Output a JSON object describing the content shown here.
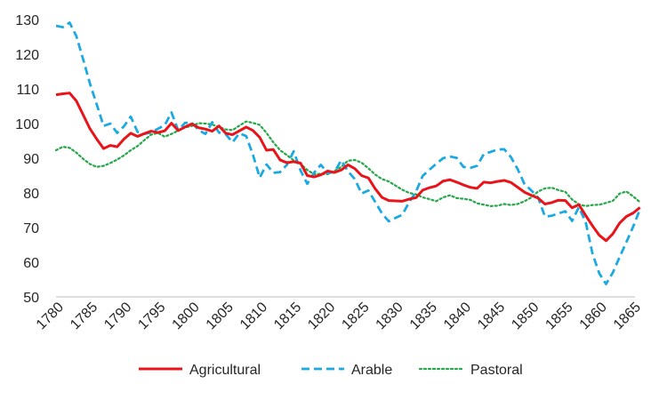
{
  "chart_data": {
    "type": "line",
    "xlim": [
      1780,
      1865
    ],
    "ylim": [
      50,
      130
    ],
    "y_ticks": [
      50,
      60,
      70,
      80,
      90,
      100,
      110,
      120,
      130
    ],
    "x_ticks": [
      1780,
      1785,
      1790,
      1795,
      1800,
      1805,
      1810,
      1815,
      1820,
      1825,
      1830,
      1835,
      1840,
      1845,
      1850,
      1855,
      1860,
      1865
    ],
    "grid": false,
    "legend_position": "bottom",
    "series": [
      {
        "name": "Agricultural",
        "color": "#e8141a",
        "dash": "solid",
        "points": [
          [
            1780,
            108.3
          ],
          [
            1781,
            108.6
          ],
          [
            1782,
            108.8
          ],
          [
            1783,
            106.5
          ],
          [
            1784,
            102.5
          ],
          [
            1785,
            98.5
          ],
          [
            1786,
            95.5
          ],
          [
            1787,
            92.8
          ],
          [
            1788,
            93.7
          ],
          [
            1789,
            93.3
          ],
          [
            1790,
            95.5
          ],
          [
            1791,
            97.2
          ],
          [
            1792,
            96.3
          ],
          [
            1793,
            97.1
          ],
          [
            1794,
            97.8
          ],
          [
            1795,
            97.4
          ],
          [
            1796,
            97.9
          ],
          [
            1797,
            100.1
          ],
          [
            1798,
            98.0
          ],
          [
            1799,
            99.0
          ],
          [
            1800,
            99.9
          ],
          [
            1801,
            98.8
          ],
          [
            1802,
            98.4
          ],
          [
            1803,
            97.8
          ],
          [
            1804,
            99.3
          ],
          [
            1805,
            97.2
          ],
          [
            1806,
            96.8
          ],
          [
            1807,
            97.9
          ],
          [
            1808,
            99.0
          ],
          [
            1809,
            98.0
          ],
          [
            1810,
            96.0
          ],
          [
            1811,
            92.3
          ],
          [
            1812,
            92.5
          ],
          [
            1813,
            89.5
          ],
          [
            1814,
            88.7
          ],
          [
            1815,
            89.0
          ],
          [
            1816,
            88.6
          ],
          [
            1817,
            85.0
          ],
          [
            1818,
            84.6
          ],
          [
            1819,
            85.2
          ],
          [
            1820,
            86.3
          ],
          [
            1821,
            85.9
          ],
          [
            1822,
            86.6
          ],
          [
            1823,
            88.1
          ],
          [
            1824,
            87.0
          ],
          [
            1825,
            85.0
          ],
          [
            1826,
            84.3
          ],
          [
            1827,
            81.2
          ],
          [
            1828,
            78.7
          ],
          [
            1829,
            77.8
          ],
          [
            1830,
            77.7
          ],
          [
            1831,
            77.6
          ],
          [
            1832,
            78.2
          ],
          [
            1833,
            78.6
          ],
          [
            1834,
            80.8
          ],
          [
            1835,
            81.5
          ],
          [
            1836,
            82.0
          ],
          [
            1837,
            83.4
          ],
          [
            1838,
            83.8
          ],
          [
            1839,
            83.1
          ],
          [
            1840,
            82.3
          ],
          [
            1841,
            81.6
          ],
          [
            1842,
            81.3
          ],
          [
            1843,
            83.1
          ],
          [
            1844,
            82.9
          ],
          [
            1845,
            83.3
          ],
          [
            1846,
            83.6
          ],
          [
            1847,
            83.0
          ],
          [
            1848,
            81.6
          ],
          [
            1849,
            80.2
          ],
          [
            1850,
            79.3
          ],
          [
            1851,
            78.5
          ],
          [
            1852,
            76.8
          ],
          [
            1853,
            77.2
          ],
          [
            1854,
            77.9
          ],
          [
            1855,
            77.8
          ],
          [
            1856,
            75.7
          ],
          [
            1857,
            76.6
          ],
          [
            1858,
            73.5
          ],
          [
            1859,
            70.5
          ],
          [
            1860,
            67.8
          ],
          [
            1861,
            66.2
          ],
          [
            1862,
            68.2
          ],
          [
            1863,
            71.3
          ],
          [
            1864,
            73.2
          ],
          [
            1865,
            74.2
          ],
          [
            1866,
            75.8
          ]
        ]
      },
      {
        "name": "Arable",
        "color": "#1aa9e0",
        "dash": "dashed",
        "points": [
          [
            1780,
            128.2
          ],
          [
            1781,
            127.8
          ],
          [
            1782,
            129.1
          ],
          [
            1783,
            125.2
          ],
          [
            1784,
            118.5
          ],
          [
            1785,
            111.5
          ],
          [
            1786,
            105.5
          ],
          [
            1787,
            99.3
          ],
          [
            1788,
            100.0
          ],
          [
            1789,
            97.3
          ],
          [
            1790,
            99.2
          ],
          [
            1791,
            102.0
          ],
          [
            1792,
            97.6
          ],
          [
            1793,
            97.0
          ],
          [
            1794,
            97.4
          ],
          [
            1795,
            98.5
          ],
          [
            1796,
            99.5
          ],
          [
            1797,
            103.2
          ],
          [
            1798,
            98.0
          ],
          [
            1799,
            100.2
          ],
          [
            1800,
            100.3
          ],
          [
            1801,
            98.1
          ],
          [
            1802,
            97.0
          ],
          [
            1803,
            100.4
          ],
          [
            1804,
            97.4
          ],
          [
            1805,
            96.9
          ],
          [
            1806,
            94.6
          ],
          [
            1807,
            97.2
          ],
          [
            1808,
            96.4
          ],
          [
            1809,
            91.0
          ],
          [
            1810,
            84.4
          ],
          [
            1811,
            88.2
          ],
          [
            1812,
            85.8
          ],
          [
            1813,
            86.0
          ],
          [
            1814,
            88.1
          ],
          [
            1815,
            92.0
          ],
          [
            1816,
            86.5
          ],
          [
            1817,
            82.6
          ],
          [
            1818,
            85.8
          ],
          [
            1819,
            88.1
          ],
          [
            1820,
            85.7
          ],
          [
            1821,
            86.0
          ],
          [
            1822,
            89.4
          ],
          [
            1823,
            86.2
          ],
          [
            1824,
            84.0
          ],
          [
            1825,
            79.8
          ],
          [
            1826,
            80.7
          ],
          [
            1827,
            77.4
          ],
          [
            1828,
            74.1
          ],
          [
            1829,
            71.8
          ],
          [
            1830,
            72.8
          ],
          [
            1831,
            73.7
          ],
          [
            1832,
            77.3
          ],
          [
            1833,
            80.3
          ],
          [
            1834,
            84.9
          ],
          [
            1835,
            86.7
          ],
          [
            1836,
            88.4
          ],
          [
            1837,
            90.0
          ],
          [
            1838,
            90.5
          ],
          [
            1839,
            90.1
          ],
          [
            1840,
            87.5
          ],
          [
            1841,
            87.2
          ],
          [
            1842,
            87.8
          ],
          [
            1843,
            91.2
          ],
          [
            1844,
            91.8
          ],
          [
            1845,
            92.5
          ],
          [
            1846,
            92.6
          ],
          [
            1847,
            90.3
          ],
          [
            1848,
            86.8
          ],
          [
            1849,
            82.5
          ],
          [
            1850,
            80.7
          ],
          [
            1851,
            78.6
          ],
          [
            1852,
            73.2
          ],
          [
            1853,
            73.4
          ],
          [
            1854,
            74.1
          ],
          [
            1855,
            74.7
          ],
          [
            1856,
            71.9
          ],
          [
            1857,
            75.9
          ],
          [
            1858,
            71.6
          ],
          [
            1859,
            62.5
          ],
          [
            1860,
            56.8
          ],
          [
            1861,
            53.7
          ],
          [
            1862,
            57.0
          ],
          [
            1863,
            61.5
          ],
          [
            1864,
            65.8
          ],
          [
            1865,
            70.3
          ],
          [
            1866,
            75.3
          ]
        ]
      },
      {
        "name": "Pastoral",
        "color": "#27a84a",
        "dash": "dotted",
        "points": [
          [
            1780,
            92.3
          ],
          [
            1781,
            93.3
          ],
          [
            1782,
            93.0
          ],
          [
            1783,
            91.6
          ],
          [
            1784,
            89.8
          ],
          [
            1785,
            88.3
          ],
          [
            1786,
            87.5
          ],
          [
            1787,
            87.8
          ],
          [
            1788,
            88.6
          ],
          [
            1789,
            89.6
          ],
          [
            1790,
            90.8
          ],
          [
            1791,
            92.3
          ],
          [
            1792,
            93.5
          ],
          [
            1793,
            95.2
          ],
          [
            1794,
            96.8
          ],
          [
            1795,
            97.3
          ],
          [
            1796,
            96.2
          ],
          [
            1797,
            97.0
          ],
          [
            1798,
            98.0
          ],
          [
            1799,
            98.9
          ],
          [
            1800,
            99.3
          ],
          [
            1801,
            100.1
          ],
          [
            1802,
            100.0
          ],
          [
            1803,
            99.7
          ],
          [
            1804,
            99.0
          ],
          [
            1805,
            98.3
          ],
          [
            1806,
            98.1
          ],
          [
            1807,
            99.4
          ],
          [
            1808,
            100.6
          ],
          [
            1809,
            100.2
          ],
          [
            1810,
            99.6
          ],
          [
            1811,
            97.3
          ],
          [
            1812,
            94.6
          ],
          [
            1813,
            92.3
          ],
          [
            1814,
            90.9
          ],
          [
            1815,
            89.4
          ],
          [
            1816,
            88.4
          ],
          [
            1817,
            86.6
          ],
          [
            1818,
            85.4
          ],
          [
            1819,
            85.5
          ],
          [
            1820,
            85.4
          ],
          [
            1821,
            86.3
          ],
          [
            1822,
            87.5
          ],
          [
            1823,
            89.3
          ],
          [
            1824,
            89.5
          ],
          [
            1825,
            88.7
          ],
          [
            1826,
            87.1
          ],
          [
            1827,
            85.3
          ],
          [
            1828,
            84.0
          ],
          [
            1829,
            83.3
          ],
          [
            1830,
            82.1
          ],
          [
            1831,
            80.9
          ],
          [
            1832,
            80.0
          ],
          [
            1833,
            79.6
          ],
          [
            1834,
            78.7
          ],
          [
            1835,
            78.2
          ],
          [
            1836,
            77.6
          ],
          [
            1837,
            78.7
          ],
          [
            1838,
            79.3
          ],
          [
            1839,
            78.5
          ],
          [
            1840,
            78.3
          ],
          [
            1841,
            78.0
          ],
          [
            1842,
            77.0
          ],
          [
            1843,
            76.6
          ],
          [
            1844,
            76.2
          ],
          [
            1845,
            76.3
          ],
          [
            1846,
            76.8
          ],
          [
            1847,
            76.5
          ],
          [
            1848,
            76.8
          ],
          [
            1849,
            77.6
          ],
          [
            1850,
            78.7
          ],
          [
            1851,
            80.4
          ],
          [
            1852,
            81.3
          ],
          [
            1853,
            81.5
          ],
          [
            1854,
            80.8
          ],
          [
            1855,
            80.3
          ],
          [
            1856,
            78.1
          ],
          [
            1857,
            76.7
          ],
          [
            1858,
            76.2
          ],
          [
            1859,
            76.5
          ],
          [
            1860,
            76.6
          ],
          [
            1861,
            77.1
          ],
          [
            1862,
            77.7
          ],
          [
            1863,
            79.8
          ],
          [
            1864,
            80.4
          ],
          [
            1865,
            79.0
          ],
          [
            1866,
            77.3
          ]
        ]
      }
    ]
  }
}
